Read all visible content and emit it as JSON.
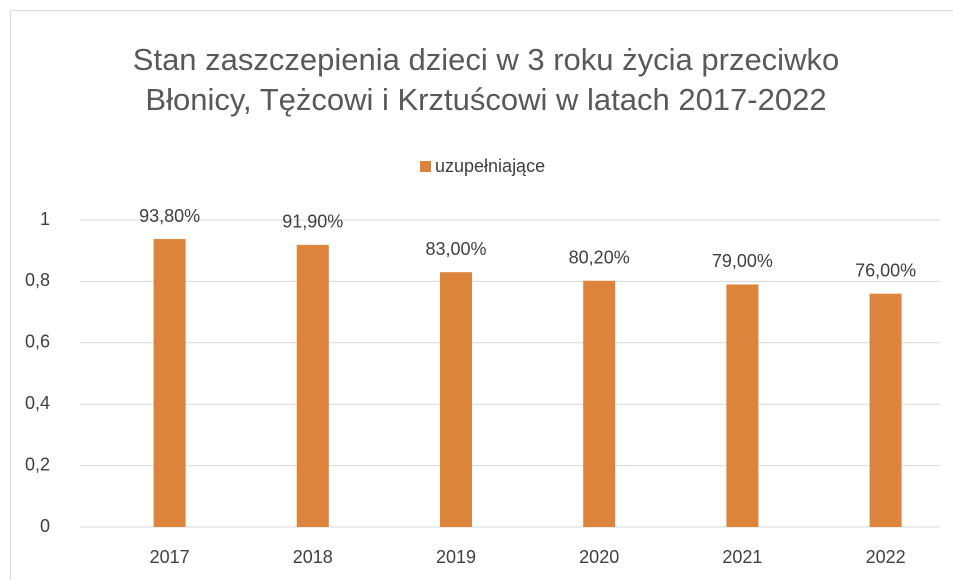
{
  "chart_data": {
    "type": "bar",
    "title": "Stan zaszczepienia dzieci w 3 roku życia przeciwko Błonicy, Tężcowi i Krztuścowi w latach 2017-2022",
    "categories": [
      "2017",
      "2018",
      "2019",
      "2020",
      "2021",
      "2022"
    ],
    "series": [
      {
        "name": "uzupełniające",
        "color": "#dd843c",
        "values": [
          0.938,
          0.919,
          0.83,
          0.802,
          0.79,
          0.76
        ],
        "value_labels": [
          "93,80%",
          "91,90%",
          "83,00%",
          "80,20%",
          "79,00%",
          "76,00%"
        ]
      }
    ],
    "ylim": [
      0,
      1
    ],
    "yticks": [
      0,
      {
        "value": 0.2,
        "label": "0,2"
      },
      {
        "value": 0.4,
        "label": "0,4"
      },
      {
        "value": 0.6,
        "label": "0,6"
      },
      {
        "value": 0.8,
        "label": "0,8"
      },
      1
    ],
    "grid": true,
    "legend": "top"
  }
}
